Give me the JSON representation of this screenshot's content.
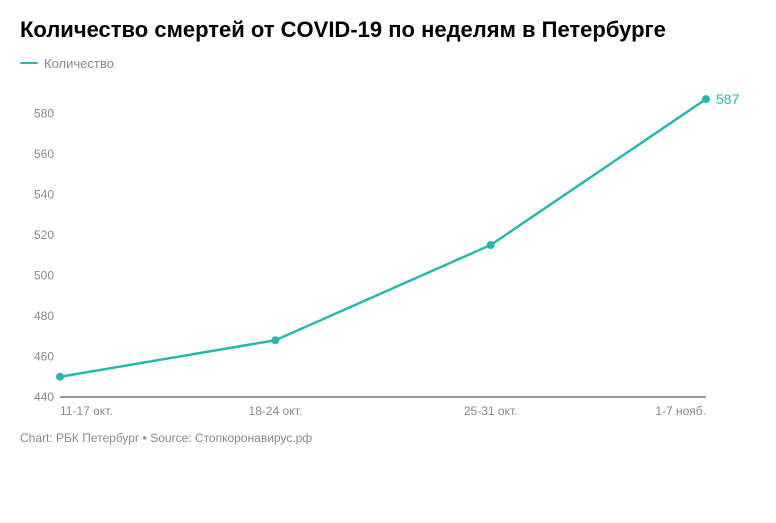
{
  "chart": {
    "type": "line",
    "title": "Количество смертей от COVID-19 по неделям в Петербурге",
    "legend_label": "Количество",
    "series_color": "#2ab7a9",
    "text_color": "#888888",
    "title_color": "#000000",
    "background_color": "#ffffff",
    "axis_line_color": "#333333",
    "title_fontsize": 22,
    "label_fontsize": 12,
    "marker_radius": 4,
    "line_width": 2.5,
    "ylim": [
      440,
      590
    ],
    "ytick_step": 20,
    "yticks": [
      440,
      460,
      480,
      500,
      520,
      540,
      560,
      580
    ],
    "categories": [
      "11-17 окт.",
      "18-24 окт.",
      "25-31 окт.",
      "1-7 нояб."
    ],
    "values": [
      450,
      468,
      515,
      587
    ],
    "last_value_label": "587",
    "footer": "Chart: РБК Петербург • Source: Стопкоронавирус.рф"
  }
}
